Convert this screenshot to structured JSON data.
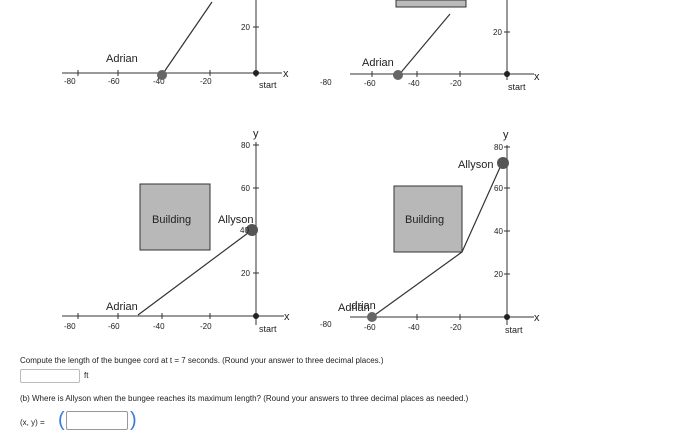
{
  "panels": {
    "top_left": {
      "y_label": "",
      "y_ticks": [
        "20"
      ],
      "x_ticks": [
        "-80",
        "-60",
        "-40",
        "-20"
      ],
      "x_label": "x",
      "person": "Adrian",
      "start": "start"
    },
    "top_right": {
      "y_ticks": [
        "20"
      ],
      "x_ticks": [
        "-80",
        "-60",
        "-40",
        "-20"
      ],
      "x_label": "x",
      "person": "Adrian",
      "start": "start"
    },
    "bottom_left": {
      "y_label": "y",
      "y_ticks": [
        "80",
        "60",
        "20"
      ],
      "x_ticks": [
        "-80",
        "-60",
        "-40",
        "-20"
      ],
      "x_label": "x",
      "person1": "Adrian",
      "person2": "Allyson",
      "person2_value": "40",
      "building": "Building",
      "start": "start"
    },
    "bottom_right": {
      "y_label": "y",
      "y_ticks": [
        "80",
        "60",
        "40",
        "20"
      ],
      "x_ticks": [
        "-80",
        "-60",
        "-40",
        "-20"
      ],
      "x_label": "x",
      "person1": "Adrian",
      "person2": "Allyson",
      "building": "Building",
      "start": "start"
    }
  },
  "questions": {
    "a_text": "Compute the length of the bungee cord at t = 7 seconds. (Round your answer to three decimal places.)",
    "a_unit": "ft",
    "b_text": "(b) Where is Allyson when the bungee reaches its maximum length? (Round your answers to three decimal places as needed.)",
    "b_label": "(x, y) =",
    "b_open": "(",
    "b_close": ")"
  }
}
